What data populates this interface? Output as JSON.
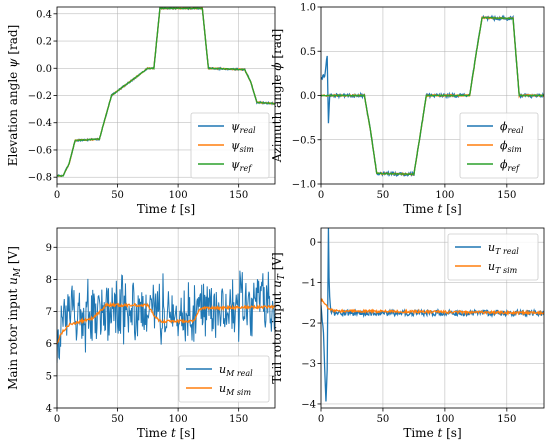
{
  "chart_data": [
    {
      "type": "line",
      "id": "elevation",
      "xlabel": "Time t [s]",
      "ylabel": "Elevation angle ψ [rad]",
      "xlim": [
        0,
        180
      ],
      "ylim": [
        -0.85,
        0.45
      ],
      "xticks": [
        0,
        50,
        100,
        150
      ],
      "yticks": [
        -0.8,
        -0.6,
        -0.4,
        -0.2,
        0.0,
        0.2,
        0.4
      ],
      "ytick_labels": [
        "−0.8",
        "−0.6",
        "−0.4",
        "−0.2",
        "0.0",
        "0.2",
        "0.4"
      ],
      "grid": true,
      "legend_position": "lower-right",
      "series": [
        {
          "name": "ψ_real",
          "label_main": "ψ",
          "label_sub": "real",
          "color": "#1f77b4",
          "noise": 0.006,
          "x": [
            0,
            5,
            10,
            15,
            35,
            40,
            45,
            75,
            80,
            85,
            115,
            120,
            125,
            155,
            160,
            165,
            180
          ],
          "y": [
            -0.79,
            -0.79,
            -0.7,
            -0.53,
            -0.52,
            -0.36,
            -0.2,
            0.0,
            0.0,
            0.44,
            0.44,
            0.44,
            0.0,
            -0.01,
            -0.1,
            -0.25,
            -0.26
          ]
        },
        {
          "name": "ψ_sim",
          "label_main": "ψ",
          "label_sub": "sim",
          "color": "#ff7f0e",
          "noise": 0.004,
          "x": [
            0,
            5,
            10,
            15,
            35,
            40,
            45,
            75,
            80,
            85,
            115,
            120,
            125,
            155,
            160,
            165,
            180
          ],
          "y": [
            -0.79,
            -0.79,
            -0.7,
            -0.53,
            -0.52,
            -0.36,
            -0.2,
            0.0,
            0.0,
            0.44,
            0.44,
            0.44,
            0.0,
            -0.01,
            -0.1,
            -0.25,
            -0.26
          ]
        },
        {
          "name": "ψ_ref",
          "label_main": "ψ",
          "label_sub": "ref",
          "color": "#2ca02c",
          "noise": 0.003,
          "x": [
            0,
            5,
            10,
            15,
            35,
            40,
            45,
            75,
            80,
            85,
            115,
            120,
            125,
            155,
            160,
            165,
            180
          ],
          "y": [
            -0.79,
            -0.79,
            -0.7,
            -0.53,
            -0.52,
            -0.36,
            -0.2,
            0.0,
            0.0,
            0.44,
            0.44,
            0.44,
            0.0,
            -0.01,
            -0.1,
            -0.25,
            -0.26
          ]
        }
      ]
    },
    {
      "type": "line",
      "id": "azimuth",
      "xlabel": "Time t [s]",
      "ylabel": "Azimuth angle ϕ [rad]",
      "xlim": [
        0,
        180
      ],
      "ylim": [
        -1.0,
        1.0
      ],
      "xticks": [
        0,
        50,
        100,
        150
      ],
      "yticks": [
        -1.0,
        -0.5,
        0.0,
        0.5,
        1.0
      ],
      "ytick_labels": [
        "−1.0",
        "−0.5",
        "0.0",
        "0.5",
        "1.0"
      ],
      "grid": true,
      "legend_position": "lower-right",
      "series": [
        {
          "name": "ϕ_real",
          "label_main": "ϕ",
          "label_sub": "real",
          "color": "#1f77b4",
          "noise": 0.02,
          "x": [
            0,
            3,
            5,
            6,
            7,
            8,
            10,
            35,
            40,
            45,
            75,
            80,
            85,
            120,
            125,
            130,
            155,
            160,
            180
          ],
          "y": [
            0.2,
            0.22,
            0.45,
            -0.3,
            0.0,
            0.0,
            0.0,
            0.0,
            -0.4,
            -0.88,
            -0.89,
            -0.45,
            0.0,
            0.0,
            0.45,
            0.88,
            0.87,
            0.0,
            0.0
          ]
        },
        {
          "name": "ϕ_sim",
          "label_main": "ϕ",
          "label_sub": "sim",
          "color": "#ff7f0e",
          "noise": 0.008,
          "x": [
            0,
            5,
            10,
            35,
            40,
            45,
            75,
            80,
            85,
            120,
            125,
            130,
            155,
            160,
            180
          ],
          "y": [
            0.0,
            0.0,
            0.0,
            0.0,
            -0.4,
            -0.88,
            -0.89,
            -0.45,
            0.0,
            0.0,
            0.45,
            0.88,
            0.87,
            0.0,
            0.0
          ]
        },
        {
          "name": "ϕ_ref",
          "label_main": "ϕ",
          "label_sub": "ref",
          "color": "#2ca02c",
          "noise": 0.004,
          "x": [
            0,
            5,
            10,
            35,
            40,
            45,
            75,
            80,
            85,
            120,
            125,
            130,
            155,
            160,
            180
          ],
          "y": [
            0.0,
            0.0,
            0.0,
            0.0,
            -0.4,
            -0.88,
            -0.89,
            -0.45,
            0.0,
            0.0,
            0.45,
            0.88,
            0.87,
            0.0,
            0.0
          ]
        }
      ]
    },
    {
      "type": "line",
      "id": "main-rotor",
      "xlabel": "Time t [s]",
      "ylabel": "Main rotor input u_M [V]",
      "xlim": [
        0,
        180
      ],
      "ylim": [
        4.0,
        9.6
      ],
      "xticks": [
        0,
        50,
        100,
        150
      ],
      "yticks": [
        4,
        5,
        6,
        7,
        8,
        9
      ],
      "ytick_labels": [
        "4",
        "5",
        "6",
        "7",
        "8",
        "9"
      ],
      "grid": true,
      "legend_position": "lower-right",
      "series": [
        {
          "name": "u_M real",
          "label_main": "u",
          "label_sub": "M real",
          "color": "#1f77b4",
          "noise": 0.85,
          "spiky": true,
          "x": [
            0,
            10,
            20,
            35,
            40,
            75,
            80,
            110,
            120,
            180
          ],
          "y": [
            6.4,
            6.7,
            6.9,
            7.0,
            7.1,
            7.1,
            7.0,
            6.8,
            7.1,
            7.2
          ]
        },
        {
          "name": "u_M sim",
          "label_main": "u",
          "label_sub": "M sim",
          "color": "#ff7f0e",
          "noise": 0.04,
          "x": [
            0,
            3,
            10,
            30,
            38,
            40,
            75,
            80,
            85,
            113,
            118,
            180
          ],
          "y": [
            6.0,
            6.3,
            6.6,
            6.8,
            7.1,
            7.2,
            7.2,
            6.9,
            6.7,
            6.7,
            7.1,
            7.15
          ]
        }
      ]
    },
    {
      "type": "line",
      "id": "tail-rotor",
      "xlabel": "Time t [s]",
      "ylabel": "Tail rotor input u_T [V]",
      "xlim": [
        0,
        180
      ],
      "ylim": [
        -4.1,
        0.35
      ],
      "xticks": [
        0,
        50,
        100,
        150
      ],
      "yticks": [
        -4,
        -3,
        -2,
        -1,
        0
      ],
      "ytick_labels": [
        "−4",
        "−3",
        "−2",
        "−1",
        "0"
      ],
      "grid": true,
      "legend_position": "upper-right",
      "series": [
        {
          "name": "u_T real",
          "label_main": "u",
          "label_sub": "T real",
          "color": "#1f77b4",
          "noise": 0.07,
          "x": [
            0,
            2,
            4,
            5,
            6,
            6.7,
            7.2,
            8,
            10,
            12,
            180
          ],
          "y": [
            -1.6,
            -2.3,
            -4.0,
            -3.2,
            0.3,
            -1.4,
            -1.4,
            -1.7,
            -1.75,
            -1.75,
            -1.75
          ]
        },
        {
          "name": "u_T sim",
          "label_main": "u",
          "label_sub": "T sim",
          "color": "#ff7f0e",
          "noise": 0.03,
          "x": [
            0,
            5,
            10,
            180
          ],
          "y": [
            -1.4,
            -1.6,
            -1.7,
            -1.75
          ]
        }
      ]
    }
  ]
}
